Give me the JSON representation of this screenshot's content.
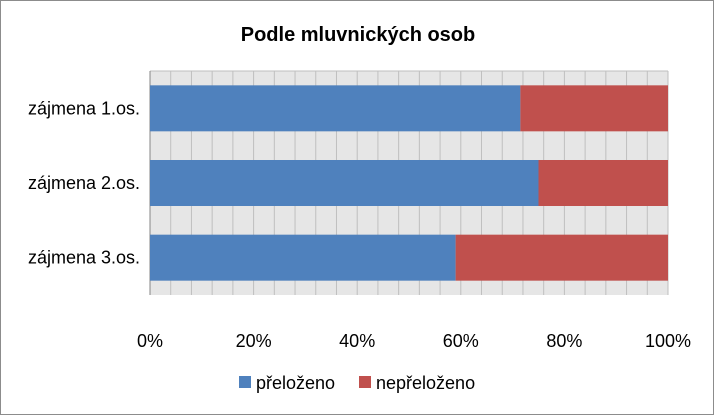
{
  "chart_data": {
    "type": "bar",
    "orientation": "horizontal",
    "stacked": "percent",
    "title": "Podle mluvnických osob",
    "categories": [
      "zájmena 1.os.",
      "zájmena 2.os.",
      "zájmena 3.os."
    ],
    "series": [
      {
        "name": "přeloženo",
        "color": "#4f81bd",
        "values": [
          71.5,
          75,
          59
        ]
      },
      {
        "name": "nepřeloženo",
        "color": "#c0504d",
        "values": [
          28.5,
          25,
          41
        ]
      }
    ],
    "xlim": [
      0,
      100
    ],
    "x_ticks": [
      "0%",
      "20%",
      "40%",
      "60%",
      "80%",
      "100%"
    ],
    "grid": true,
    "legend": "bottom"
  }
}
